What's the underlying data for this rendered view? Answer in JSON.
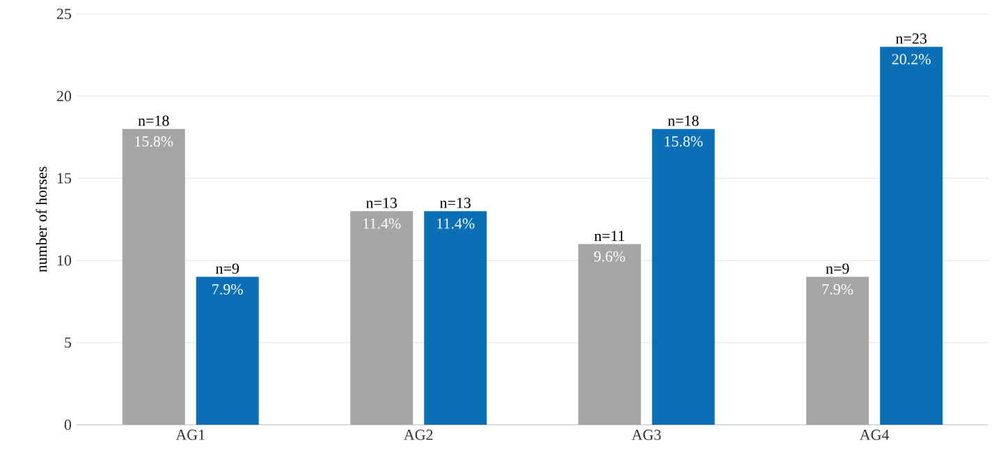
{
  "chart_data": {
    "type": "bar",
    "ylabel": "number of horses",
    "categories": [
      "AG1",
      "AG2",
      "AG3",
      "AG4"
    ],
    "series": [
      {
        "color": "#a5a5a5",
        "values": [
          18,
          13,
          11,
          9
        ],
        "value_labels": [
          "n=18",
          "n=13",
          "n=11",
          "n=9"
        ]
      },
      {
        "color": "#0a6fb5",
        "values": [
          9,
          13,
          18,
          23
        ],
        "value_labels": [
          "n=9",
          "n=13",
          "n=18",
          "n=23"
        ]
      }
    ],
    "annotations": [
      {
        "text": "15.8%",
        "x": "AG1",
        "y": 18
      },
      {
        "text": "11.4%",
        "x": "AG2",
        "y": 13
      },
      {
        "text": "9.6%",
        "x": "AG3",
        "y": 11
      },
      {
        "text": "7.9%",
        "x": "AG4",
        "y": 9
      },
      {
        "text": "7.9%",
        "x": "AG1",
        "y": 9
      },
      {
        "text": "11.4%",
        "x": "AG2",
        "y": 13
      },
      {
        "text": "15.8%",
        "x": "AG3",
        "y": 18
      },
      {
        "text": "20.2%",
        "x": "AG4",
        "y": 23
      }
    ],
    "ylim": [
      0,
      25
    ],
    "yticks": [
      0,
      5,
      10,
      15,
      20,
      25
    ],
    "grid": "y"
  }
}
